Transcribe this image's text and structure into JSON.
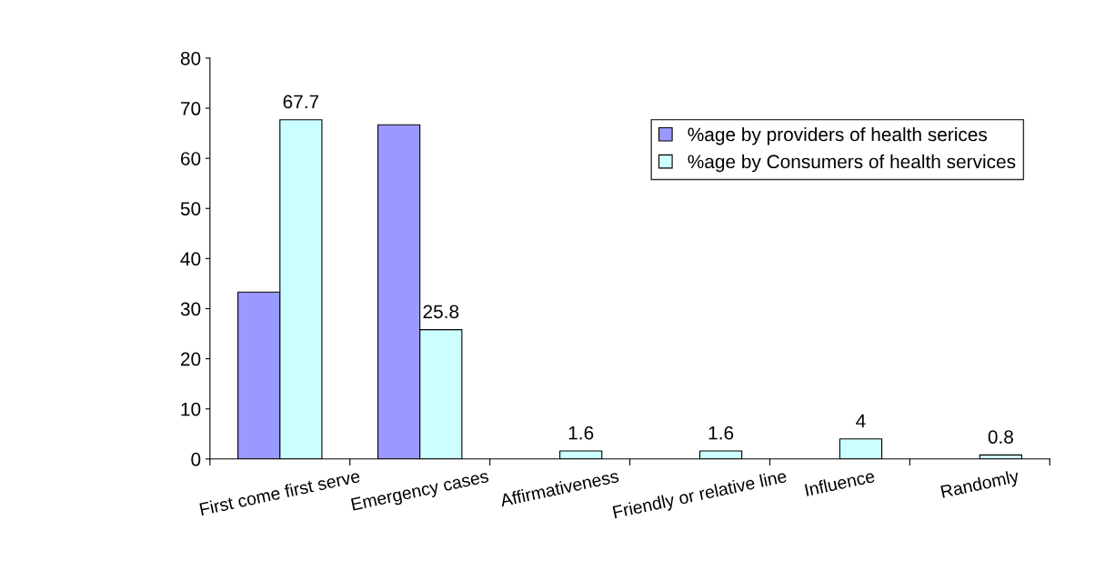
{
  "chart_data": {
    "type": "bar",
    "categories": [
      "First come first serve",
      "Emergency cases",
      "Affirmativeness",
      "Friendly or relative line",
      "Influence",
      "Randomly"
    ],
    "series": [
      {
        "name": "%age by providers of health serices",
        "color": "#9999ff",
        "values": [
          33.3,
          66.7,
          null,
          null,
          null,
          null
        ]
      },
      {
        "name": "%age by Consumers of health services",
        "color": "#ccffff",
        "values": [
          67.7,
          25.8,
          1.6,
          1.6,
          4,
          0.8
        ],
        "value_labels": [
          "67.7",
          "25.8",
          "1.6",
          "1.6",
          "4",
          "0.8"
        ]
      }
    ],
    "ylim": [
      0,
      80
    ],
    "yticks": [
      0,
      10,
      20,
      30,
      40,
      50,
      60,
      70,
      80
    ],
    "grid": false,
    "legend": "top right"
  }
}
